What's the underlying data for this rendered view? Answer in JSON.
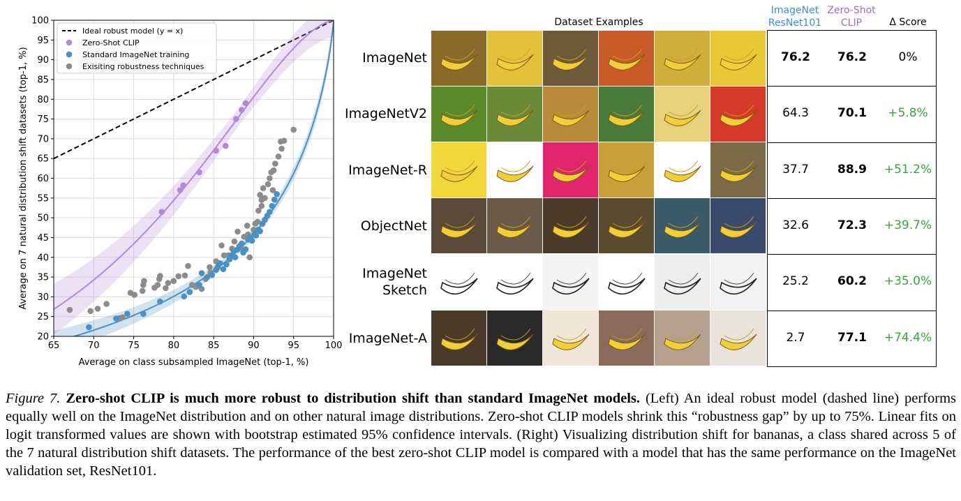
{
  "chart_data": {
    "type": "scatter",
    "xlabel": "Average on class subsampled ImageNet (top-1, %)",
    "ylabel": "Average on 7 natural distribution shift datasets (top-1, %)",
    "xlim": [
      65,
      100
    ],
    "ylim": [
      20,
      100
    ],
    "xticks": [
      "65",
      "70",
      "75",
      "80",
      "85",
      "90",
      "95",
      "100"
    ],
    "yticks": [
      "20",
      "25",
      "30",
      "35",
      "40",
      "45",
      "50",
      "55",
      "60",
      "65",
      "70",
      "75",
      "80",
      "85",
      "90",
      "95",
      "100"
    ],
    "grid": true,
    "legend_position": "top-left",
    "series": [
      {
        "name": "Ideal robust model (y = x)",
        "kind": "dashed-line",
        "color": "#000000",
        "points": [
          [
            65,
            65
          ],
          [
            100,
            100
          ]
        ]
      },
      {
        "name": "Zero-Shot CLIP",
        "kind": "scatter+fit",
        "color": "#b388d6",
        "points": [
          [
            78.5,
            51.5
          ],
          [
            80.8,
            57
          ],
          [
            81.2,
            58.2
          ],
          [
            83.2,
            61.5
          ],
          [
            85.3,
            67
          ],
          [
            86.5,
            68.2
          ],
          [
            87.8,
            75
          ],
          [
            88.5,
            77.3
          ],
          [
            89,
            79
          ]
        ]
      },
      {
        "name": "Standard ImageNet training",
        "kind": "scatter+fit",
        "color": "#4a90c4",
        "points": [
          [
            69.4,
            22.3
          ],
          [
            72.8,
            24.5
          ],
          [
            74.2,
            25.7
          ],
          [
            76.2,
            25.7
          ],
          [
            78.3,
            28.8
          ],
          [
            81.3,
            30.1
          ],
          [
            82,
            31.2
          ],
          [
            83.2,
            33
          ],
          [
            83.5,
            36
          ],
          [
            84.2,
            35
          ],
          [
            84.8,
            35.5
          ],
          [
            85.3,
            36.8
          ],
          [
            85.5,
            37.5
          ],
          [
            85.8,
            38.5
          ],
          [
            86.2,
            37
          ],
          [
            86.6,
            38.2
          ],
          [
            87,
            39.5
          ],
          [
            87.2,
            40.5
          ],
          [
            87.5,
            41.5
          ],
          [
            87.7,
            40
          ],
          [
            88,
            42
          ],
          [
            88.2,
            42.8
          ],
          [
            88.5,
            43.5
          ],
          [
            88.7,
            41.2
          ],
          [
            89,
            42
          ],
          [
            89.3,
            44.5
          ],
          [
            89.6,
            45
          ],
          [
            89.8,
            44.2
          ],
          [
            90.1,
            46
          ],
          [
            90.3,
            45.5
          ],
          [
            90.6,
            47
          ],
          [
            90.8,
            46.6
          ],
          [
            91.1,
            48.5
          ],
          [
            91.4,
            49.5
          ],
          [
            91.7,
            50.5
          ],
          [
            92,
            51.5
          ],
          [
            92.3,
            53
          ],
          [
            92.6,
            54.6
          ],
          [
            92.9,
            56
          ]
        ]
      },
      {
        "name": "Exisiting robustness techniques",
        "kind": "scatter",
        "color": "#8c8c8c",
        "points": [
          [
            67,
            26.7
          ],
          [
            69.6,
            26.4
          ],
          [
            70.5,
            27
          ],
          [
            71.6,
            28.2
          ],
          [
            73.2,
            24.6
          ],
          [
            73.6,
            24.8
          ],
          [
            74.6,
            31
          ],
          [
            75.1,
            30.5
          ],
          [
            76.1,
            31.5
          ],
          [
            76.2,
            33
          ],
          [
            76.3,
            34
          ],
          [
            77.6,
            32.3
          ],
          [
            78,
            33
          ],
          [
            78.2,
            34.5
          ],
          [
            78.3,
            35.3
          ],
          [
            79,
            32.2
          ],
          [
            79.3,
            33.5
          ],
          [
            80,
            34
          ],
          [
            80.6,
            35.2
          ],
          [
            81.4,
            35.4
          ],
          [
            81.8,
            37.8
          ],
          [
            82.3,
            33
          ],
          [
            82.8,
            32.5
          ],
          [
            83.5,
            32
          ],
          [
            84,
            34.5
          ],
          [
            84.6,
            36.2
          ],
          [
            85.3,
            39
          ],
          [
            85.6,
            38.5
          ],
          [
            86.3,
            40.5
          ],
          [
            86.8,
            40.5
          ],
          [
            87.3,
            42.2
          ],
          [
            87.6,
            44
          ],
          [
            88.4,
            42.5
          ],
          [
            88.8,
            45.2
          ],
          [
            89.3,
            45.8
          ],
          [
            89.5,
            40
          ],
          [
            90,
            47
          ],
          [
            90.2,
            48.5
          ],
          [
            90.5,
            49
          ],
          [
            90.6,
            51.8
          ],
          [
            91,
            53
          ],
          [
            91.4,
            55
          ],
          [
            91.2,
            57.5
          ],
          [
            91.8,
            58.5
          ],
          [
            92,
            60
          ],
          [
            92.2,
            61.5
          ],
          [
            92.5,
            62
          ],
          [
            92.7,
            63.7
          ],
          [
            93.1,
            65.5
          ],
          [
            93.5,
            67.5
          ],
          [
            93.4,
            69.3
          ],
          [
            93.8,
            69.5
          ],
          [
            95,
            72.3
          ],
          [
            91,
            54.5
          ],
          [
            92.4,
            57
          ],
          [
            90.8,
            55.8
          ],
          [
            89.2,
            48
          ],
          [
            88,
            46.5
          ],
          [
            86,
            43
          ],
          [
            84.5,
            37.5
          ]
        ]
      }
    ]
  },
  "table": {
    "header_examples": "Dataset Examples",
    "header_resnet": "ImageNet\nResNet101",
    "header_clip": "Zero-Shot\nCLIP",
    "header_delta": "Δ Score",
    "color_resnet": "#3d8fd1",
    "color_clip": "#9b6fc6",
    "color_delta_positive": "#3aa53a",
    "rows": [
      {
        "name": "ImageNet",
        "resnet": "76.2",
        "clip": "76.2",
        "delta": "0%",
        "resnet_bold": true
      },
      {
        "name": "ImageNetV2",
        "resnet": "64.3",
        "clip": "70.1",
        "delta": "+5.8%",
        "resnet_bold": false
      },
      {
        "name": "ImageNet-R",
        "resnet": "37.7",
        "clip": "88.9",
        "delta": "+51.2%",
        "resnet_bold": false
      },
      {
        "name": "ObjectNet",
        "resnet": "32.6",
        "clip": "72.3",
        "delta": "+39.7%",
        "resnet_bold": false
      },
      {
        "name": "ImageNet\nSketch",
        "resnet": "25.2",
        "clip": "60.2",
        "delta": "+35.0%",
        "resnet_bold": false
      },
      {
        "name": "ImageNet-A",
        "resnet": "2.7",
        "clip": "77.1",
        "delta": "+74.4%",
        "resnet_bold": false
      }
    ]
  },
  "caption": {
    "label": "Figure 7.",
    "title": "Zero-shot CLIP is much more robust to distribution shift than standard ImageNet models.",
    "body": "(Left) An ideal robust model (dashed line) performs equally well on the ImageNet distribution and on other natural image distributions. Zero-shot CLIP models shrink this “robustness gap” by up to 75%. Linear fits on logit transformed values are shown with bootstrap estimated 95% confidence intervals. (Right) Visualizing distribution shift for bananas, a class shared across 5 of the 7 natural distribution shift datasets. The performance of the best zero-shot CLIP model is compared with a model that has the same performance on the ImageNet validation set, ResNet101."
  }
}
